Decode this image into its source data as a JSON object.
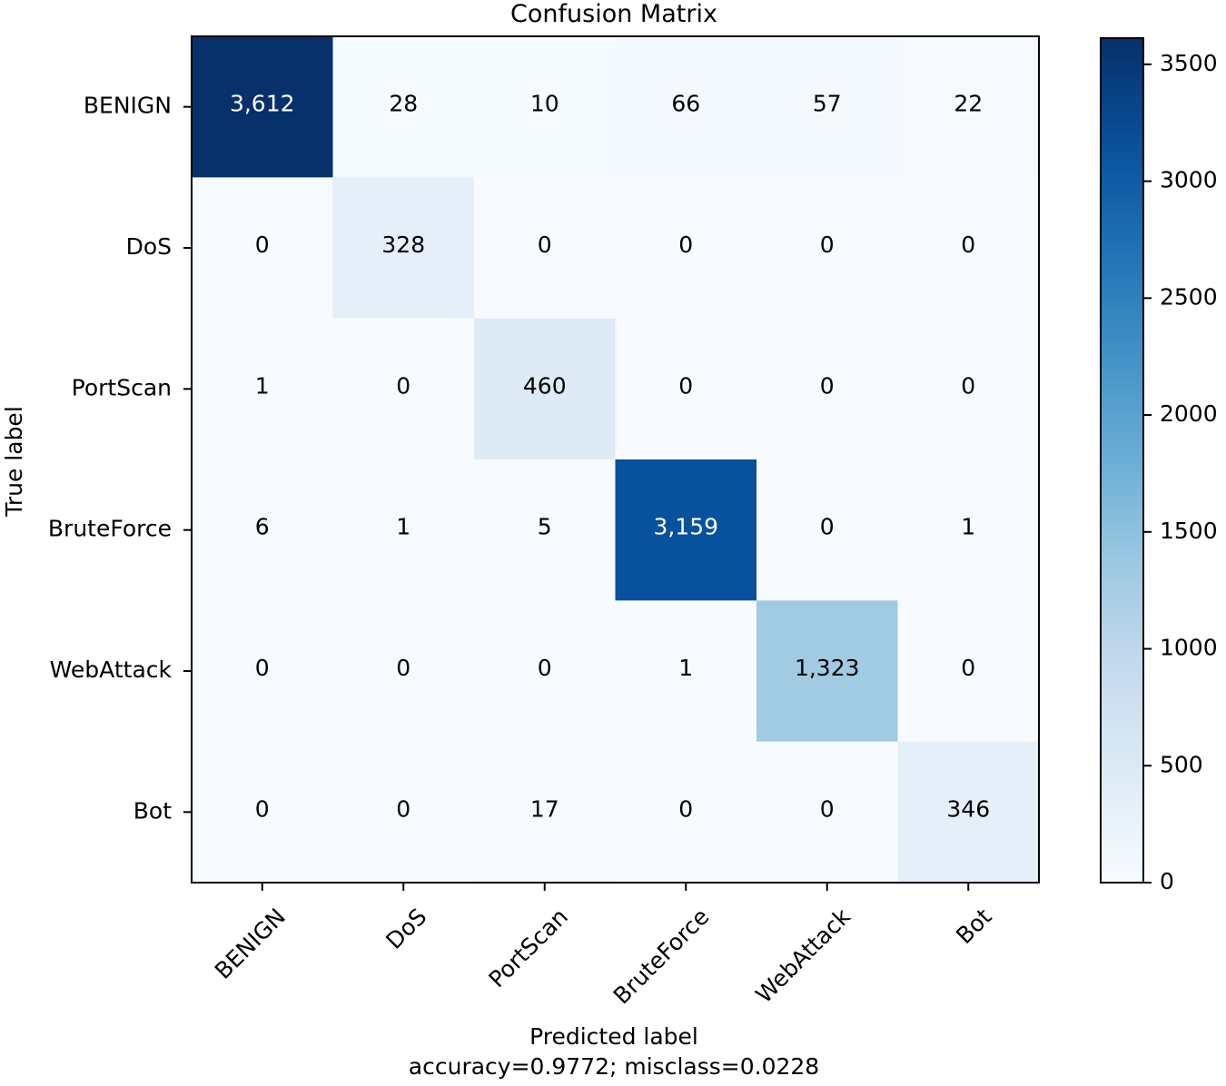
{
  "chart_data": {
    "type": "heatmap",
    "title": "Confusion Matrix",
    "xlabel": "Predicted label",
    "xlabel_sub": "accuracy=0.9772; misclass=0.0228",
    "ylabel": "True label",
    "x_categories": [
      "BENIGN",
      "DoS",
      "PortScan",
      "BruteForce",
      "WebAttack",
      "Bot"
    ],
    "y_categories": [
      "BENIGN",
      "DoS",
      "PortScan",
      "BruteForce",
      "WebAttack",
      "Bot"
    ],
    "values": [
      [
        3612,
        28,
        10,
        66,
        57,
        22
      ],
      [
        0,
        328,
        0,
        0,
        0,
        0
      ],
      [
        1,
        0,
        460,
        0,
        0,
        0
      ],
      [
        6,
        1,
        5,
        3159,
        0,
        1
      ],
      [
        0,
        0,
        0,
        1,
        1323,
        0
      ],
      [
        0,
        0,
        17,
        0,
        0,
        346
      ]
    ],
    "cell_labels": [
      [
        "3,612",
        "28",
        "10",
        "66",
        "57",
        "22"
      ],
      [
        "0",
        "328",
        "0",
        "0",
        "0",
        "0"
      ],
      [
        "1",
        "0",
        "460",
        "0",
        "0",
        "0"
      ],
      [
        "6",
        "1",
        "5",
        "3,159",
        "0",
        "1"
      ],
      [
        "0",
        "0",
        "0",
        "1",
        "1,323",
        "0"
      ],
      [
        "0",
        "0",
        "17",
        "0",
        "0",
        "346"
      ]
    ],
    "colormap": "Blues",
    "color_range": [
      0,
      3612
    ],
    "colorbar_ticks": [
      0,
      500,
      1000,
      1500,
      2000,
      2500,
      3000,
      3500
    ],
    "colorbar_tick_labels": [
      "0",
      "500",
      "1000",
      "1500",
      "2000",
      "2500",
      "3000",
      "3500"
    ],
    "grid": false,
    "colors": {
      "text_dark": "#000000",
      "text_light": "#ffffff",
      "axes": "#000000"
    }
  }
}
